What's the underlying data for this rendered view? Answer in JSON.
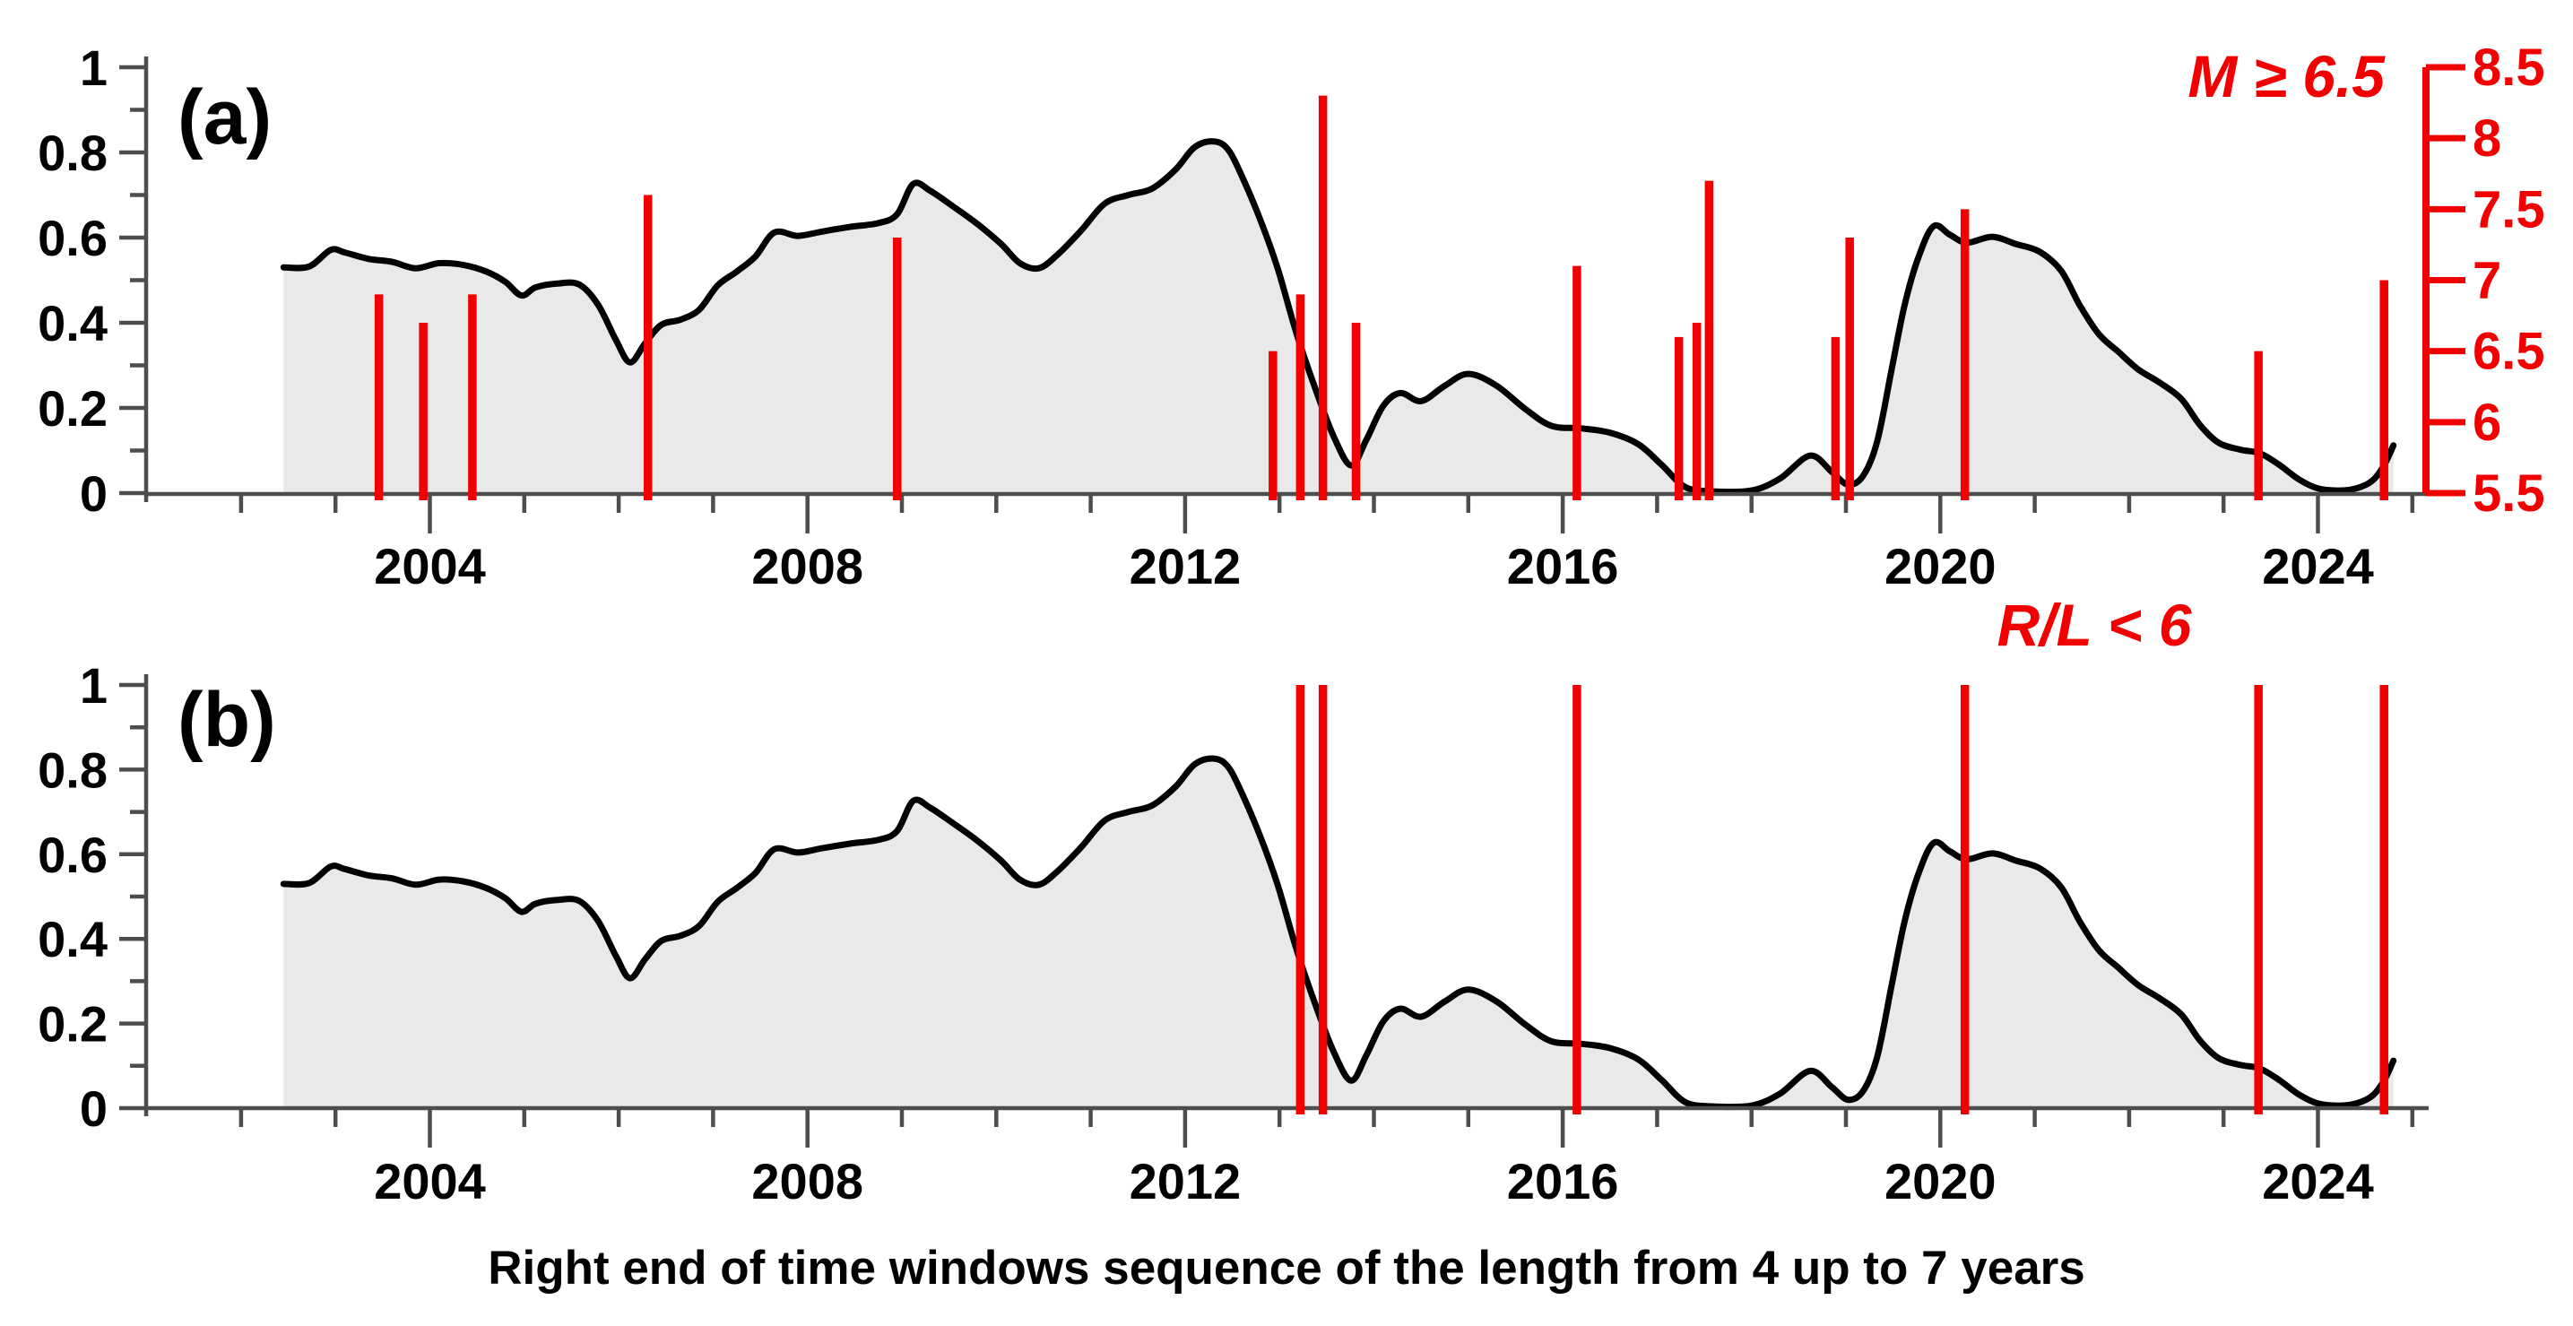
{
  "labels": {
    "panel_a": "(a)",
    "panel_b": "(b)",
    "m_title": "M ≥ 6.5",
    "rl_title": "R/L < 6",
    "caption": "Right end of time windows sequence of the length from 4 up to 7 years"
  },
  "colors": {
    "red": "#f20000",
    "curve": "#000000",
    "fill": "#e9e9e9",
    "axis": "#4d4d4d",
    "text": "#000000"
  },
  "chart_data": [
    {
      "id": "a",
      "type": "area",
      "panel_label": "(a)",
      "x_axis": {
        "range": [
          2001.0,
          2025.2
        ],
        "major_ticks": [
          2004,
          2008,
          2012,
          2016,
          2020,
          2024
        ],
        "major_tick_labels": [
          "2004",
          "2008",
          "2012",
          "2016",
          "2020",
          "2024"
        ],
        "minor_tick_start": 2002,
        "minor_tick_end": 2025,
        "minor_tick_step": 1
      },
      "y_left_axis": {
        "range": [
          0,
          1
        ],
        "major_ticks": [
          0,
          0.2,
          0.4,
          0.6,
          0.8,
          1
        ],
        "major_tick_labels": [
          "0",
          "0.2",
          "0.4",
          "0.6",
          "0.8",
          "1"
        ],
        "minor_ticks": [
          0.1,
          0.3,
          0.5,
          0.7,
          0.9
        ]
      },
      "y_right_axis": {
        "label": "M ≥ 6.5",
        "range": [
          5.5,
          8.5
        ],
        "ticks": [
          5.5,
          6,
          6.5,
          7,
          7.5,
          8,
          8.5
        ],
        "tick_labels": [
          "5.5",
          "6",
          "6.5",
          "7",
          "7.5",
          "8",
          "8.5"
        ]
      },
      "series": [
        {
          "name": "alarm-probability-curve",
          "style": "gray-filled-black-line",
          "points_ref": "curve_points"
        },
        {
          "name": "earthquakes-M6.5plus",
          "style": "red-stems-magnitude",
          "events": [
            [
              2003.46,
              6.9
            ],
            [
              2003.93,
              6.7
            ],
            [
              2004.45,
              6.9
            ],
            [
              2006.31,
              7.6
            ],
            [
              2008.95,
              7.3
            ],
            [
              2012.93,
              6.5
            ],
            [
              2013.22,
              6.9
            ],
            [
              2013.46,
              8.3
            ],
            [
              2013.81,
              6.7
            ],
            [
              2016.15,
              7.1
            ],
            [
              2017.23,
              6.6
            ],
            [
              2017.42,
              6.7
            ],
            [
              2017.55,
              7.7
            ],
            [
              2018.89,
              6.6
            ],
            [
              2019.04,
              7.3
            ],
            [
              2020.26,
              7.5
            ],
            [
              2023.37,
              6.5
            ],
            [
              2024.7,
              7.0
            ]
          ]
        }
      ]
    },
    {
      "id": "b",
      "type": "area",
      "panel_label": "(b)",
      "annotation": "R/L < 6",
      "x_axis": {
        "range": [
          2001.0,
          2025.2
        ],
        "major_ticks": [
          2004,
          2008,
          2012,
          2016,
          2020,
          2024
        ],
        "major_tick_labels": [
          "2004",
          "2008",
          "2012",
          "2016",
          "2020",
          "2024"
        ],
        "minor_tick_start": 2002,
        "minor_tick_end": 2025,
        "minor_tick_step": 1
      },
      "y_left_axis": {
        "range": [
          0,
          1
        ],
        "major_ticks": [
          0,
          0.2,
          0.4,
          0.6,
          0.8,
          1
        ],
        "major_tick_labels": [
          "0",
          "0.2",
          "0.4",
          "0.6",
          "0.8",
          "1"
        ],
        "minor_ticks": [
          0.1,
          0.3,
          0.5,
          0.7,
          0.9
        ]
      },
      "series": [
        {
          "name": "alarm-probability-curve",
          "style": "gray-filled-black-line",
          "points_ref": "curve_points"
        },
        {
          "name": "earthquakes-RL-less-6",
          "style": "red-stems-full-height",
          "stem_value": 1.0,
          "event_years": [
            2013.22,
            2013.46,
            2016.15,
            2020.26,
            2023.37,
            2024.7
          ]
        }
      ]
    }
  ],
  "curve_points": [
    [
      2002.45,
      0.53
    ],
    [
      2002.72,
      0.532
    ],
    [
      2002.95,
      0.571
    ],
    [
      2003.1,
      0.565
    ],
    [
      2003.35,
      0.55
    ],
    [
      2003.6,
      0.543
    ],
    [
      2003.85,
      0.528
    ],
    [
      2004.1,
      0.54
    ],
    [
      2004.35,
      0.536
    ],
    [
      2004.6,
      0.52
    ],
    [
      2004.8,
      0.496
    ],
    [
      2004.97,
      0.464
    ],
    [
      2005.12,
      0.483
    ],
    [
      2005.35,
      0.492
    ],
    [
      2005.58,
      0.49
    ],
    [
      2005.78,
      0.443
    ],
    [
      2005.97,
      0.36
    ],
    [
      2006.12,
      0.307
    ],
    [
      2006.28,
      0.352
    ],
    [
      2006.45,
      0.395
    ],
    [
      2006.65,
      0.407
    ],
    [
      2006.85,
      0.43
    ],
    [
      2007.05,
      0.488
    ],
    [
      2007.25,
      0.52
    ],
    [
      2007.45,
      0.556
    ],
    [
      2007.65,
      0.612
    ],
    [
      2007.9,
      0.604
    ],
    [
      2008.15,
      0.614
    ],
    [
      2008.45,
      0.625
    ],
    [
      2008.75,
      0.634
    ],
    [
      2008.95,
      0.655
    ],
    [
      2009.12,
      0.726
    ],
    [
      2009.3,
      0.71
    ],
    [
      2009.55,
      0.672
    ],
    [
      2009.8,
      0.632
    ],
    [
      2010.05,
      0.585
    ],
    [
      2010.25,
      0.54
    ],
    [
      2010.45,
      0.528
    ],
    [
      2010.65,
      0.56
    ],
    [
      2010.9,
      0.617
    ],
    [
      2011.15,
      0.68
    ],
    [
      2011.4,
      0.7
    ],
    [
      2011.65,
      0.715
    ],
    [
      2011.9,
      0.76
    ],
    [
      2012.1,
      0.812
    ],
    [
      2012.3,
      0.826
    ],
    [
      2012.45,
      0.808
    ],
    [
      2012.6,
      0.745
    ],
    [
      2012.8,
      0.64
    ],
    [
      2012.98,
      0.528
    ],
    [
      2013.18,
      0.375
    ],
    [
      2013.38,
      0.245
    ],
    [
      2013.58,
      0.13
    ],
    [
      2013.76,
      0.065
    ],
    [
      2013.92,
      0.125
    ],
    [
      2014.1,
      0.205
    ],
    [
      2014.28,
      0.235
    ],
    [
      2014.5,
      0.216
    ],
    [
      2014.75,
      0.252
    ],
    [
      2015.0,
      0.28
    ],
    [
      2015.3,
      0.252
    ],
    [
      2015.6,
      0.198
    ],
    [
      2015.88,
      0.158
    ],
    [
      2016.2,
      0.152
    ],
    [
      2016.5,
      0.142
    ],
    [
      2016.8,
      0.115
    ],
    [
      2017.05,
      0.066
    ],
    [
      2017.3,
      0.014
    ],
    [
      2017.6,
      0.004
    ],
    [
      2018.0,
      0.006
    ],
    [
      2018.3,
      0.034
    ],
    [
      2018.62,
      0.088
    ],
    [
      2018.85,
      0.05
    ],
    [
      2019.02,
      0.02
    ],
    [
      2019.18,
      0.04
    ],
    [
      2019.33,
      0.12
    ],
    [
      2019.48,
      0.285
    ],
    [
      2019.62,
      0.44
    ],
    [
      2019.77,
      0.555
    ],
    [
      2019.93,
      0.627
    ],
    [
      2020.1,
      0.607
    ],
    [
      2020.28,
      0.588
    ],
    [
      2020.55,
      0.602
    ],
    [
      2020.8,
      0.585
    ],
    [
      2021.05,
      0.567
    ],
    [
      2021.28,
      0.522
    ],
    [
      2021.48,
      0.44
    ],
    [
      2021.68,
      0.373
    ],
    [
      2021.88,
      0.333
    ],
    [
      2022.1,
      0.29
    ],
    [
      2022.32,
      0.26
    ],
    [
      2022.55,
      0.222
    ],
    [
      2022.75,
      0.16
    ],
    [
      2022.95,
      0.118
    ],
    [
      2023.18,
      0.102
    ],
    [
      2023.38,
      0.094
    ],
    [
      2023.58,
      0.068
    ],
    [
      2023.8,
      0.032
    ],
    [
      2024.0,
      0.011
    ],
    [
      2024.22,
      0.006
    ],
    [
      2024.42,
      0.012
    ],
    [
      2024.58,
      0.03
    ],
    [
      2024.7,
      0.065
    ],
    [
      2024.8,
      0.112
    ]
  ]
}
